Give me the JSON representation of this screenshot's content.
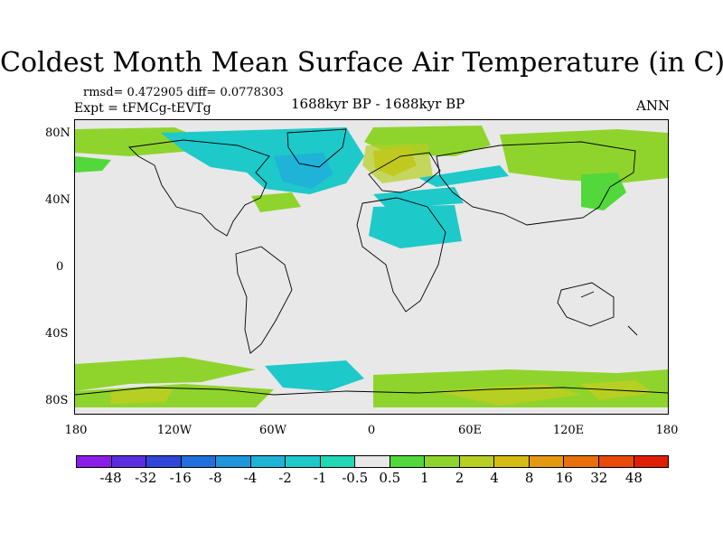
{
  "title": "Coldest Month Mean Surface Air Temperature (in C)",
  "stats": "rmsd= 0.472905  diff= 0.0778303",
  "experiment": "Expt = tFMCg-tEVTg",
  "period": "1688kyr BP - 1688kyr BP",
  "season": "ANN",
  "y_axis_labels": [
    "80N",
    "40N",
    "0",
    "40S",
    "80S"
  ],
  "x_axis_labels": [
    "180",
    "120W",
    "60W",
    "0",
    "60E",
    "120E",
    "180"
  ],
  "colorbar": {
    "labels": [
      "-48",
      "-32",
      "-16",
      "-8",
      "-4",
      "-2",
      "-1",
      "-0.5",
      "0.5",
      "1",
      "2",
      "4",
      "8",
      "16",
      "32",
      "48"
    ],
    "colors": [
      "#8a1ee6",
      "#5a2ee0",
      "#3046d8",
      "#1f6fdc",
      "#1f95dc",
      "#1fb3d8",
      "#1dc9c9",
      "#20d8b4",
      "#e8e8e8",
      "#52d83a",
      "#8fd42c",
      "#b6cf22",
      "#d6bb14",
      "#e39a10",
      "#e8700c",
      "#e84a0a",
      "#e01e06"
    ]
  }
}
